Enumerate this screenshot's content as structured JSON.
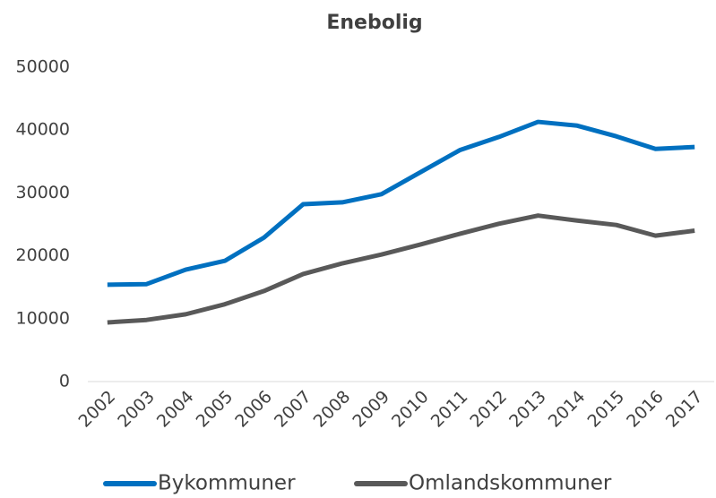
{
  "chart_data": {
    "type": "line",
    "title": "Enebolig",
    "categories": [
      "2002",
      "2003",
      "2004",
      "2005",
      "2006",
      "2007",
      "2008",
      "2009",
      "2010",
      "2011",
      "2012",
      "2013",
      "2014",
      "2015",
      "2016",
      "2017"
    ],
    "series": [
      {
        "name": "Bykommuner",
        "color": "#0070c0",
        "values": [
          15400,
          15500,
          17800,
          19200,
          22900,
          28200,
          28500,
          29800,
          33300,
          36800,
          38900,
          41300,
          40700,
          39000,
          37000,
          37300
        ]
      },
      {
        "name": "Omlandskommuner",
        "color": "#595959",
        "values": [
          9400,
          9800,
          10700,
          12300,
          14400,
          17100,
          18800,
          20200,
          21800,
          23500,
          25100,
          26400,
          25600,
          24900,
          23200,
          24000
        ]
      }
    ],
    "ylim": [
      0,
      50000
    ],
    "yticks": [
      0,
      10000,
      20000,
      30000,
      40000,
      50000
    ],
    "grid": false
  }
}
